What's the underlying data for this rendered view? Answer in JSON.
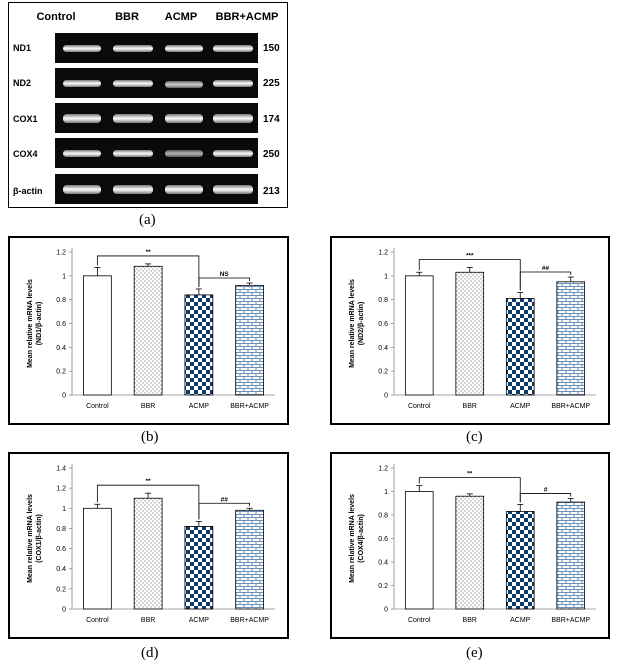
{
  "panel_a": {
    "label": "(a)",
    "lanes": [
      "Control",
      "BBR",
      "ACMP",
      "BBR+ACMP"
    ],
    "rows": [
      {
        "name": "ND1",
        "size": "150"
      },
      {
        "name": "ND2",
        "size": "225"
      },
      {
        "name": "COX1",
        "size": "174"
      },
      {
        "name": "COX4",
        "size": "250"
      },
      {
        "name": "β-actin",
        "size": "213"
      }
    ]
  },
  "chart_data": [
    {
      "type": "bar",
      "panel": "(b)",
      "categories": [
        "Control",
        "BBR",
        "ACMP",
        "BBR+ACMP"
      ],
      "values": [
        1.0,
        1.08,
        0.84,
        0.92
      ],
      "errors": [
        0.07,
        0.02,
        0.05,
        0.02
      ],
      "ylabel_line1": "Mean relative mRNA levels",
      "ylabel_line2": "(ND1/β-actin)",
      "ylim": [
        0,
        1.2
      ],
      "ticks": [
        "0",
        "0.2",
        "0.4",
        "0.6",
        "0.8",
        "1",
        "1.2"
      ],
      "annotations": [
        {
          "from": 0,
          "to": 2,
          "text": "**"
        },
        {
          "from": 2,
          "to": 3,
          "text": "NS"
        }
      ]
    },
    {
      "type": "bar",
      "panel": "(c)",
      "categories": [
        "Control",
        "BBR",
        "ACMP",
        "BBR+ACMP"
      ],
      "values": [
        1.0,
        1.03,
        0.81,
        0.95
      ],
      "errors": [
        0.03,
        0.04,
        0.05,
        0.04
      ],
      "ylabel_line1": "Mean relative mRNA levels",
      "ylabel_line2": "(ND2/β-actin)",
      "ylim": [
        0,
        1.2
      ],
      "ticks": [
        "0",
        "0.2",
        "0.4",
        "0.6",
        "0.8",
        "1",
        "1.2"
      ],
      "annotations": [
        {
          "from": 0,
          "to": 2,
          "text": "***"
        },
        {
          "from": 2,
          "to": 3,
          "text": "##"
        }
      ]
    },
    {
      "type": "bar",
      "panel": "(d)",
      "categories": [
        "Control",
        "BBR",
        "ACMP",
        "BBR+ACMP"
      ],
      "values": [
        1.0,
        1.1,
        0.82,
        0.98
      ],
      "errors": [
        0.04,
        0.05,
        0.05,
        0.02
      ],
      "ylabel_line1": "Mean relative mRNA levels",
      "ylabel_line2": "(COX1/β-actin)",
      "ylim": [
        0,
        1.4
      ],
      "ticks": [
        "0",
        "0.2",
        "0.4",
        "0.6",
        "0.8",
        "1",
        "1.2",
        "1.4"
      ],
      "annotations": [
        {
          "from": 0,
          "to": 2,
          "text": "**"
        },
        {
          "from": 2,
          "to": 3,
          "text": "##"
        }
      ]
    },
    {
      "type": "bar",
      "panel": "(e)",
      "categories": [
        "Control",
        "BBR",
        "ACMP",
        "BBR+ACMP"
      ],
      "values": [
        1.0,
        0.96,
        0.83,
        0.91
      ],
      "errors": [
        0.05,
        0.02,
        0.06,
        0.03
      ],
      "ylabel_line1": "Mean relative mRNA levels",
      "ylabel_line2": "(COX4/β-actin)",
      "ylim": [
        0,
        1.2
      ],
      "ticks": [
        "0",
        "0.2",
        "0.4",
        "0.6",
        "0.8",
        "1",
        "1.2"
      ],
      "annotations": [
        {
          "from": 0,
          "to": 2,
          "text": "**"
        },
        {
          "from": 2,
          "to": 3,
          "text": "#"
        }
      ]
    }
  ],
  "style": {
    "bar_outline": "#000000",
    "checker_color": "#0f3a6b",
    "brick_color": "#3b6fa8",
    "dots_color": "#9a9a9a"
  }
}
